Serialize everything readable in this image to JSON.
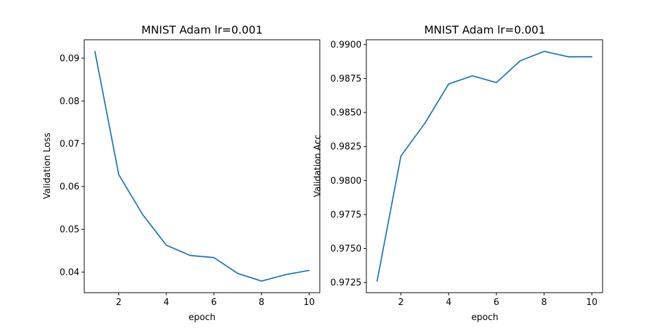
{
  "chart_data": [
    {
      "type": "line",
      "title": "MNIST Adam lr=0.001",
      "xlabel": "epoch",
      "ylabel": "Validation Loss",
      "x": [
        1,
        2,
        3,
        4,
        5,
        6,
        7,
        8,
        9,
        10
      ],
      "series": [
        {
          "values": [
            0.0916,
            0.0628,
            0.0535,
            0.0463,
            0.0439,
            0.0434,
            0.0397,
            0.0379,
            0.0394,
            0.0404
          ],
          "color": "#1f77b4"
        }
      ],
      "xlim": [
        0.55,
        10.45
      ],
      "ylim": [
        0.0352,
        0.0943
      ],
      "xticks": [
        2,
        4,
        6,
        8,
        10
      ],
      "xtick_labels": [
        "2",
        "4",
        "6",
        "8",
        "10"
      ],
      "yticks": [
        0.04,
        0.05,
        0.06,
        0.07,
        0.08,
        0.09
      ],
      "ytick_labels": [
        "0.04",
        "0.05",
        "0.06",
        "0.07",
        "0.08",
        "0.09"
      ],
      "grid": false
    },
    {
      "type": "line",
      "title": "MNIST Adam lr=0.001",
      "xlabel": "epoch",
      "ylabel": "Validation Acc",
      "x": [
        1,
        2,
        3,
        4,
        5,
        6,
        7,
        8,
        9,
        10
      ],
      "series": [
        {
          "values": [
            0.9726,
            0.9818,
            0.9842,
            0.9871,
            0.9877,
            0.9872,
            0.9888,
            0.9895,
            0.9891,
            0.9891
          ],
          "color": "#1f77b4"
        }
      ],
      "xlim": [
        0.55,
        10.45
      ],
      "ylim": [
        0.97175,
        0.99035
      ],
      "xticks": [
        2,
        4,
        6,
        8,
        10
      ],
      "xtick_labels": [
        "2",
        "4",
        "6",
        "8",
        "10"
      ],
      "yticks": [
        0.9725,
        0.975,
        0.9775,
        0.98,
        0.9825,
        0.985,
        0.9875,
        0.99
      ],
      "ytick_labels": [
        "0.9725",
        "0.9750",
        "0.9775",
        "0.9800",
        "0.9825",
        "0.9850",
        "0.9875",
        "0.9900"
      ],
      "grid": false
    }
  ]
}
